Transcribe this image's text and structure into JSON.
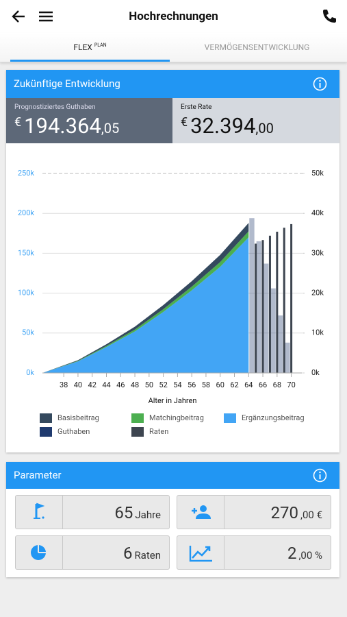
{
  "header": {
    "title": "Hochrechnungen"
  },
  "tabs": [
    {
      "label": "FLEX",
      "sup": "PLAN"
    },
    {
      "label": "VERMÖGENSENTWICKLUNG"
    }
  ],
  "projection": {
    "title": "Zukünftige Entwicklung",
    "cards": [
      {
        "label": "Prognostiziertes Guthaben",
        "currency": "€",
        "main": "194.364",
        "fraction": ",05"
      },
      {
        "label": "Erste Rate",
        "currency": "€",
        "main": "32.394",
        "fraction": ",00"
      }
    ]
  },
  "chart_data": {
    "type": "area",
    "xlabel": "Alter in Jahren",
    "xlim": [
      35,
      71
    ],
    "xticks": [
      38,
      40,
      42,
      44,
      46,
      48,
      50,
      52,
      54,
      56,
      58,
      60,
      62,
      64,
      66,
      68,
      70
    ],
    "ylim": [
      0,
      250
    ],
    "yticks": [
      {
        "value": 0,
        "label": "0k"
      },
      {
        "value": 50,
        "label": "50k"
      },
      {
        "value": 100,
        "label": "100k"
      },
      {
        "value": 150,
        "label": "150k"
      },
      {
        "value": 200,
        "label": "200k"
      },
      {
        "value": 250,
        "label": "250k"
      }
    ],
    "y2lim": [
      0,
      50
    ],
    "y2ticks": [
      {
        "value": 0,
        "label": "0k"
      },
      {
        "value": 10,
        "label": "10k"
      },
      {
        "value": 20,
        "label": "20k"
      },
      {
        "value": 30,
        "label": "30k"
      },
      {
        "value": 40,
        "label": "40k"
      },
      {
        "value": 50,
        "label": "50k"
      }
    ],
    "grid": true,
    "series": [
      {
        "name": "Ergänzungsbeitrag",
        "type": "area",
        "color": "#42a5f5",
        "x": [
          35,
          40,
          44,
          48,
          52,
          56,
          60,
          64
        ],
        "values": [
          0,
          14.5,
          32.5,
          52,
          76.5,
          103.5,
          133,
          170
        ]
      },
      {
        "name": "Matchingbeitrag",
        "type": "area",
        "color": "#4caf50",
        "x": [
          35,
          40,
          44,
          48,
          52,
          56,
          60,
          64
        ],
        "values": [
          0,
          0.6,
          1.4,
          2.3,
          3.4,
          4.6,
          6,
          7.5
        ]
      },
      {
        "name": "Basisbeitrag",
        "type": "area",
        "color": "#34495e",
        "x": [
          35,
          40,
          44,
          48,
          52,
          56,
          60,
          64
        ],
        "values": [
          0,
          0.9,
          2.1,
          3.7,
          5.1,
          6.9,
          9,
          10.5
        ]
      },
      {
        "name": "Guthaben",
        "type": "bar",
        "color": "#1f3a6e",
        "x": [
          65,
          66,
          67,
          68,
          69,
          70
        ],
        "values": [
          194,
          165,
          137,
          106,
          72,
          38
        ]
      },
      {
        "name": "Raten",
        "type": "bar",
        "axis": "y2",
        "color": "#3d4550",
        "x": [
          65,
          66,
          67,
          68,
          69,
          70
        ],
        "values": [
          32.4,
          33.3,
          34.4,
          35.4,
          36.4,
          37.3
        ]
      }
    ]
  },
  "parameters": {
    "title": "Parameter",
    "items": [
      {
        "main": "65",
        "unit": "Jahre"
      },
      {
        "main": "270",
        "unit": ",00 €"
      },
      {
        "main": "6",
        "unit": "Raten"
      },
      {
        "main": "2",
        "unit": ",00 %"
      }
    ]
  }
}
